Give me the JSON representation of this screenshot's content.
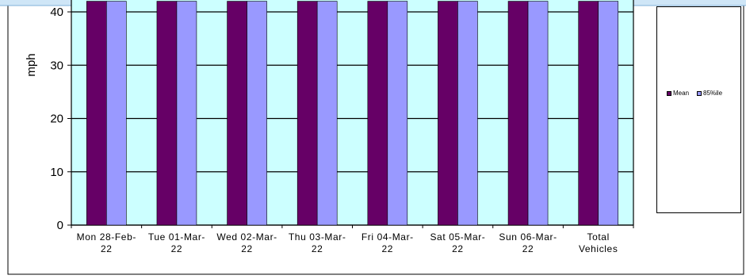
{
  "chart_data": {
    "type": "bar",
    "ylabel": "mph",
    "ylim": [
      0,
      40
    ],
    "yticks": [
      0,
      10,
      20,
      30,
      40
    ],
    "grid": true,
    "legend_position": "right",
    "categories": [
      [
        "Mon 28-Feb-",
        "22"
      ],
      [
        "Tue 01-Mar-",
        "22"
      ],
      [
        "Wed 02-Mar-",
        "22"
      ],
      [
        "Thu 03-Mar-",
        "22"
      ],
      [
        "Fri 04-Mar-",
        "22"
      ],
      [
        "Sat 05-Mar-",
        "22"
      ],
      [
        "Sun 06-Mar-",
        "22"
      ],
      [
        "Total",
        "Vehicles"
      ]
    ],
    "series": [
      {
        "name": "Mean",
        "color": "#660066",
        "values": [
          42,
          42,
          42,
          42,
          42,
          42,
          42,
          42
        ]
      },
      {
        "name": "85%ile",
        "color": "#9999FF",
        "values": [
          42,
          42,
          42,
          42,
          42,
          42,
          42,
          42
        ]
      }
    ],
    "plot_background": "#CCFFFF"
  }
}
